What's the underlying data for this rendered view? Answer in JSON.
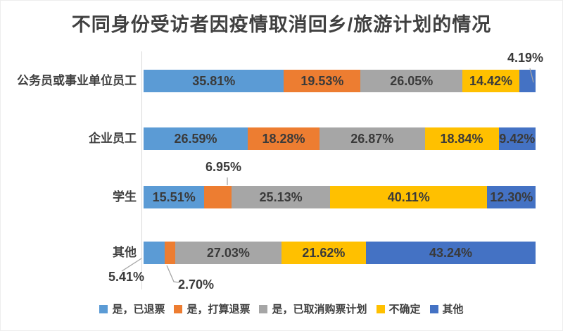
{
  "title": "不同身份受访者因疫情取消回乡/旅游计划的情况",
  "chart_data": {
    "type": "bar",
    "orientation": "horizontal",
    "stacked": true,
    "unit": "%",
    "xlim": [
      0,
      100
    ],
    "grid": false,
    "legend_position": "bottom",
    "title": "不同身份受访者因疫情取消回乡/旅游计划的情况",
    "categories": [
      "公务员或事业单位员工",
      "企业员工",
      "学生",
      "其他"
    ],
    "series": [
      {
        "name": "是，已退票",
        "color": "#5B9BD5",
        "values": [
          35.81,
          26.59,
          15.51,
          5.41
        ]
      },
      {
        "name": "是，打算退票",
        "color": "#ED7D31",
        "values": [
          19.53,
          18.28,
          6.95,
          2.7
        ]
      },
      {
        "name": "是，已取消购票计划",
        "color": "#A6A6A6",
        "values": [
          26.05,
          26.87,
          25.13,
          27.03
        ]
      },
      {
        "name": "不确定",
        "color": "#FFC000",
        "values": [
          14.42,
          18.84,
          40.11,
          21.62
        ]
      },
      {
        "name": "其他",
        "color": "#4472C4",
        "values": [
          4.19,
          9.42,
          12.3,
          43.24
        ]
      }
    ],
    "data_labels": [
      [
        "35.81%",
        "19.53%",
        "26.05%",
        "14.42%",
        "4.19%"
      ],
      [
        "26.59%",
        "18.28%",
        "26.87%",
        "18.84%",
        "9.42%"
      ],
      [
        "15.51%",
        "6.95%",
        "25.13%",
        "40.11%",
        "12.30%"
      ],
      [
        "5.41%",
        "2.70%",
        "27.03%",
        "21.62%",
        "43.24%"
      ]
    ]
  },
  "colors": {
    "title_text": "#404040",
    "label_text": "#3a3a3a",
    "axis_line": "#d9d9d9",
    "leader_line": "#a6a6a6"
  }
}
